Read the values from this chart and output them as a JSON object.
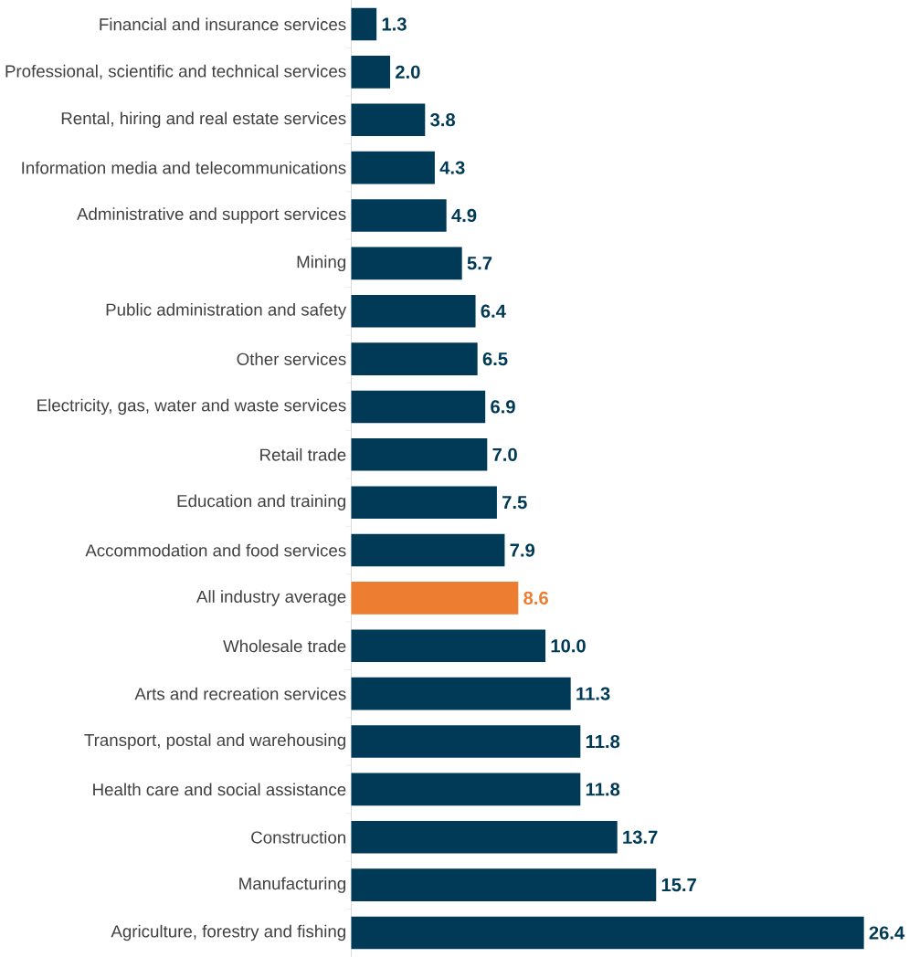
{
  "chart_data": {
    "type": "bar",
    "orientation": "horizontal",
    "value_labels": [
      "1.3",
      "2.0",
      "3.8",
      "4.3",
      "4.9",
      "5.7",
      "6.4",
      "6.5",
      "6.9",
      "7.0",
      "7.5",
      "7.9",
      "8.6",
      "10.0",
      "11.3",
      "11.8",
      "11.8",
      "13.7",
      "15.7",
      "26.4"
    ],
    "categories": [
      "Financial and insurance services",
      "Professional, scientific and technical services",
      "Rental, hiring and real estate services",
      "Information media and telecommunications",
      "Administrative and support services",
      "Mining",
      "Public administration and safety",
      "Other services",
      "Electricity, gas, water and waste services",
      "Retail trade",
      "Education and training",
      "Accommodation and food services",
      "All industry average",
      "Wholesale trade",
      "Arts and recreation services",
      "Transport, postal and warehousing",
      "Health care and social assistance",
      "Construction",
      "Manufacturing",
      "Agriculture, forestry and fishing"
    ],
    "values": [
      1.3,
      2.0,
      3.8,
      4.3,
      4.9,
      5.7,
      6.4,
      6.5,
      6.9,
      7.0,
      7.5,
      7.9,
      8.6,
      10.0,
      11.3,
      11.8,
      11.8,
      13.7,
      15.7,
      26.4
    ],
    "colors": [
      "#003a57",
      "#003a57",
      "#003a57",
      "#003a57",
      "#003a57",
      "#003a57",
      "#003a57",
      "#003a57",
      "#003a57",
      "#003a57",
      "#003a57",
      "#003a57",
      "#ed7d31",
      "#003a57",
      "#003a57",
      "#003a57",
      "#003a57",
      "#003a57",
      "#003a57",
      "#003a57"
    ]
  }
}
